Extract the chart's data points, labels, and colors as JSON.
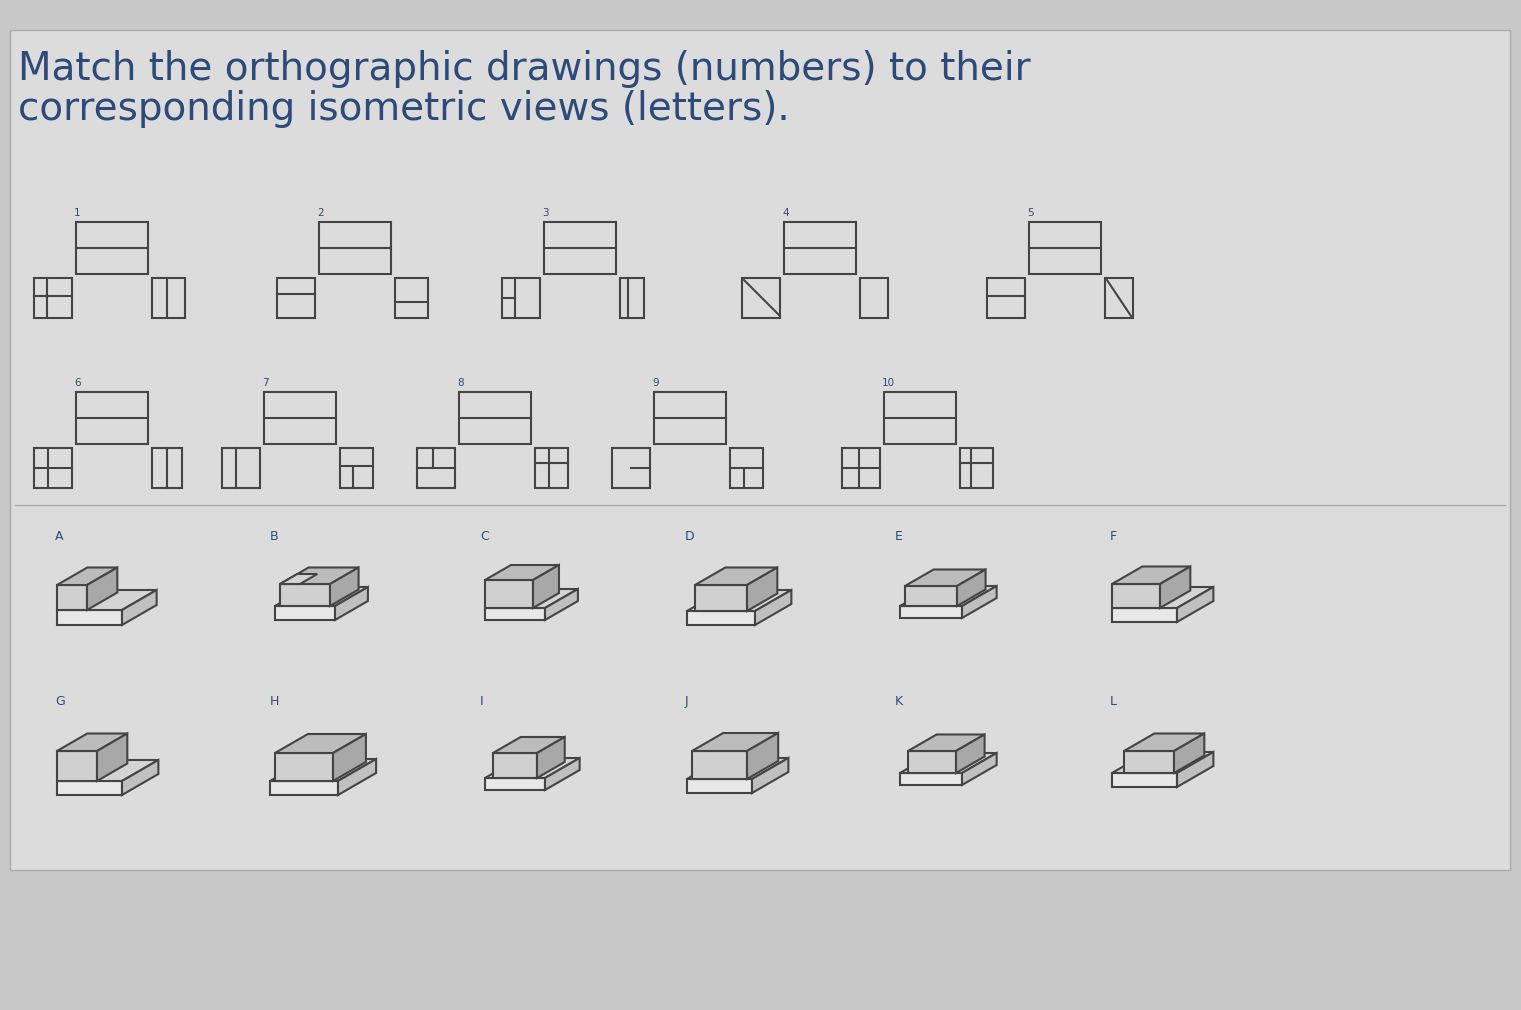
{
  "title_line1": "Match the orthographic drawings (numbers) to their",
  "title_line2": "corresponding isometric views (letters).",
  "title_color": "#2d4a7a",
  "title_fontsize": 28,
  "bg_color": "#c8c8c8",
  "panel_bg": "#d4d4d4",
  "panel_border": "#999999",
  "drawing_color": "#444444",
  "drawing_lw": 1.5,
  "ortho_numbers": [
    "1",
    "2",
    "3",
    "4",
    "5",
    "6",
    "7",
    "8",
    "9",
    "10"
  ],
  "iso_letters": [
    "A",
    "B",
    "C",
    "D",
    "E",
    "F",
    "G",
    "H",
    "I",
    "J",
    "K",
    "L"
  ],
  "label_color": "#2d4a7a",
  "label_fontsize": 9
}
